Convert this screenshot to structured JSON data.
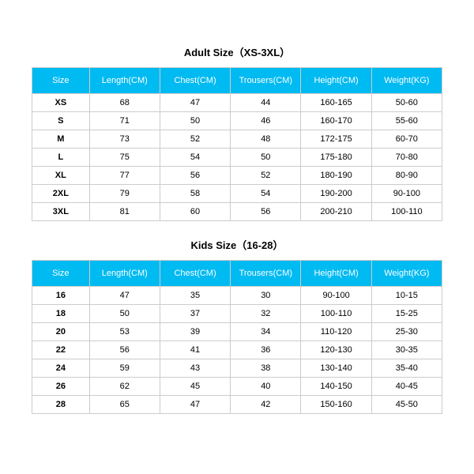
{
  "adult": {
    "title": "Adult Size（XS-3XL）",
    "columns": [
      "Size",
      "Length(CM)",
      "Chest(CM)",
      "Trousers(CM)",
      "Height(CM)",
      "Weight(KG)"
    ],
    "rows": [
      [
        "XS",
        "68",
        "47",
        "44",
        "160-165",
        "50-60"
      ],
      [
        "S",
        "71",
        "50",
        "46",
        "160-170",
        "55-60"
      ],
      [
        "M",
        "73",
        "52",
        "48",
        "172-175",
        "60-70"
      ],
      [
        "L",
        "75",
        "54",
        "50",
        "175-180",
        "70-80"
      ],
      [
        "XL",
        "77",
        "56",
        "52",
        "180-190",
        "80-90"
      ],
      [
        "2XL",
        "79",
        "58",
        "54",
        "190-200",
        "90-100"
      ],
      [
        "3XL",
        "81",
        "60",
        "56",
        "200-210",
        "100-110"
      ]
    ]
  },
  "kids": {
    "title": "Kids Size（16-28）",
    "columns": [
      "Size",
      "Length(CM)",
      "Chest(CM)",
      "Trousers(CM)",
      "Height(CM)",
      "Weight(KG)"
    ],
    "rows": [
      [
        "16",
        "47",
        "35",
        "30",
        "90-100",
        "10-15"
      ],
      [
        "18",
        "50",
        "37",
        "32",
        "100-110",
        "15-25"
      ],
      [
        "20",
        "53",
        "39",
        "34",
        "110-120",
        "25-30"
      ],
      [
        "22",
        "56",
        "41",
        "36",
        "120-130",
        "30-35"
      ],
      [
        "24",
        "59",
        "43",
        "38",
        "130-140",
        "35-40"
      ],
      [
        "26",
        "62",
        "45",
        "40",
        "140-150",
        "40-45"
      ],
      [
        "28",
        "65",
        "47",
        "42",
        "150-160",
        "45-50"
      ]
    ]
  },
  "styling": {
    "header_bg": "#00baf2",
    "header_text": "#ffffff",
    "border_color": "#cccccc",
    "title_fontsize": 13,
    "cell_fontsize": 11
  }
}
